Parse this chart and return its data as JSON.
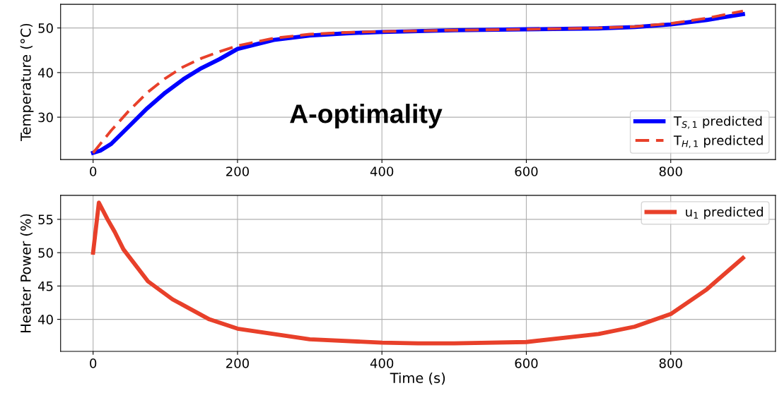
{
  "chart_data": [
    {
      "type": "line",
      "ylabel": "Temperature (°C)",
      "annotations": [
        "A-optimality"
      ],
      "x": [
        0,
        10,
        25,
        50,
        75,
        100,
        125,
        150,
        175,
        200,
        250,
        300,
        350,
        400,
        500,
        600,
        700,
        750,
        800,
        850,
        900
      ],
      "series": [
        {
          "name": "T$_{S,1}$ predicted",
          "color": "#0000ff",
          "line_style": "solid",
          "values": [
            22,
            22.5,
            24,
            28,
            32,
            35.5,
            38.5,
            41,
            43,
            45.3,
            47.3,
            48.3,
            48.8,
            49.1,
            49.5,
            49.7,
            49.9,
            50.2,
            50.8,
            51.8,
            53.1
          ]
        },
        {
          "name": "T$_{H,1}$ predicted",
          "color": "#e8402a",
          "line_style": "dashed",
          "values": [
            22,
            24,
            27,
            31.5,
            35.5,
            38.7,
            41.3,
            43.2,
            44.7,
            46,
            47.7,
            48.6,
            49,
            49.2,
            49.5,
            49.7,
            50,
            50.3,
            51,
            52.2,
            53.8
          ]
        }
      ],
      "xlim": [
        -45,
        945
      ],
      "xticks": [
        0,
        200,
        400,
        600,
        800
      ],
      "ylim": [
        20.5,
        55.3
      ],
      "yticks": [
        30,
        40,
        50
      ],
      "grid": true,
      "legend": "bottom right"
    },
    {
      "type": "line",
      "xlabel": "Time (s)",
      "ylabel": "Heater Power (%)",
      "x": [
        0,
        8,
        20,
        30,
        42,
        76,
        110,
        161,
        200,
        300,
        400,
        450,
        500,
        600,
        700,
        750,
        800,
        850,
        900
      ],
      "series": [
        {
          "name": "u$_{1}$ predicted",
          "color": "#e8402a",
          "line_style": "solid",
          "values": [
            50,
            57.5,
            55,
            53.1,
            50.5,
            45.7,
            43,
            40,
            38.6,
            37,
            36.5,
            36.4,
            36.4,
            36.6,
            37.8,
            38.9,
            40.8,
            44.5,
            49.2
          ]
        }
      ],
      "xlim": [
        -45,
        945
      ],
      "xticks": [
        0,
        200,
        400,
        600,
        800
      ],
      "ylim": [
        35.2,
        58.6
      ],
      "yticks": [
        40,
        45,
        50,
        55
      ],
      "grid": true,
      "legend": "top right"
    }
  ]
}
